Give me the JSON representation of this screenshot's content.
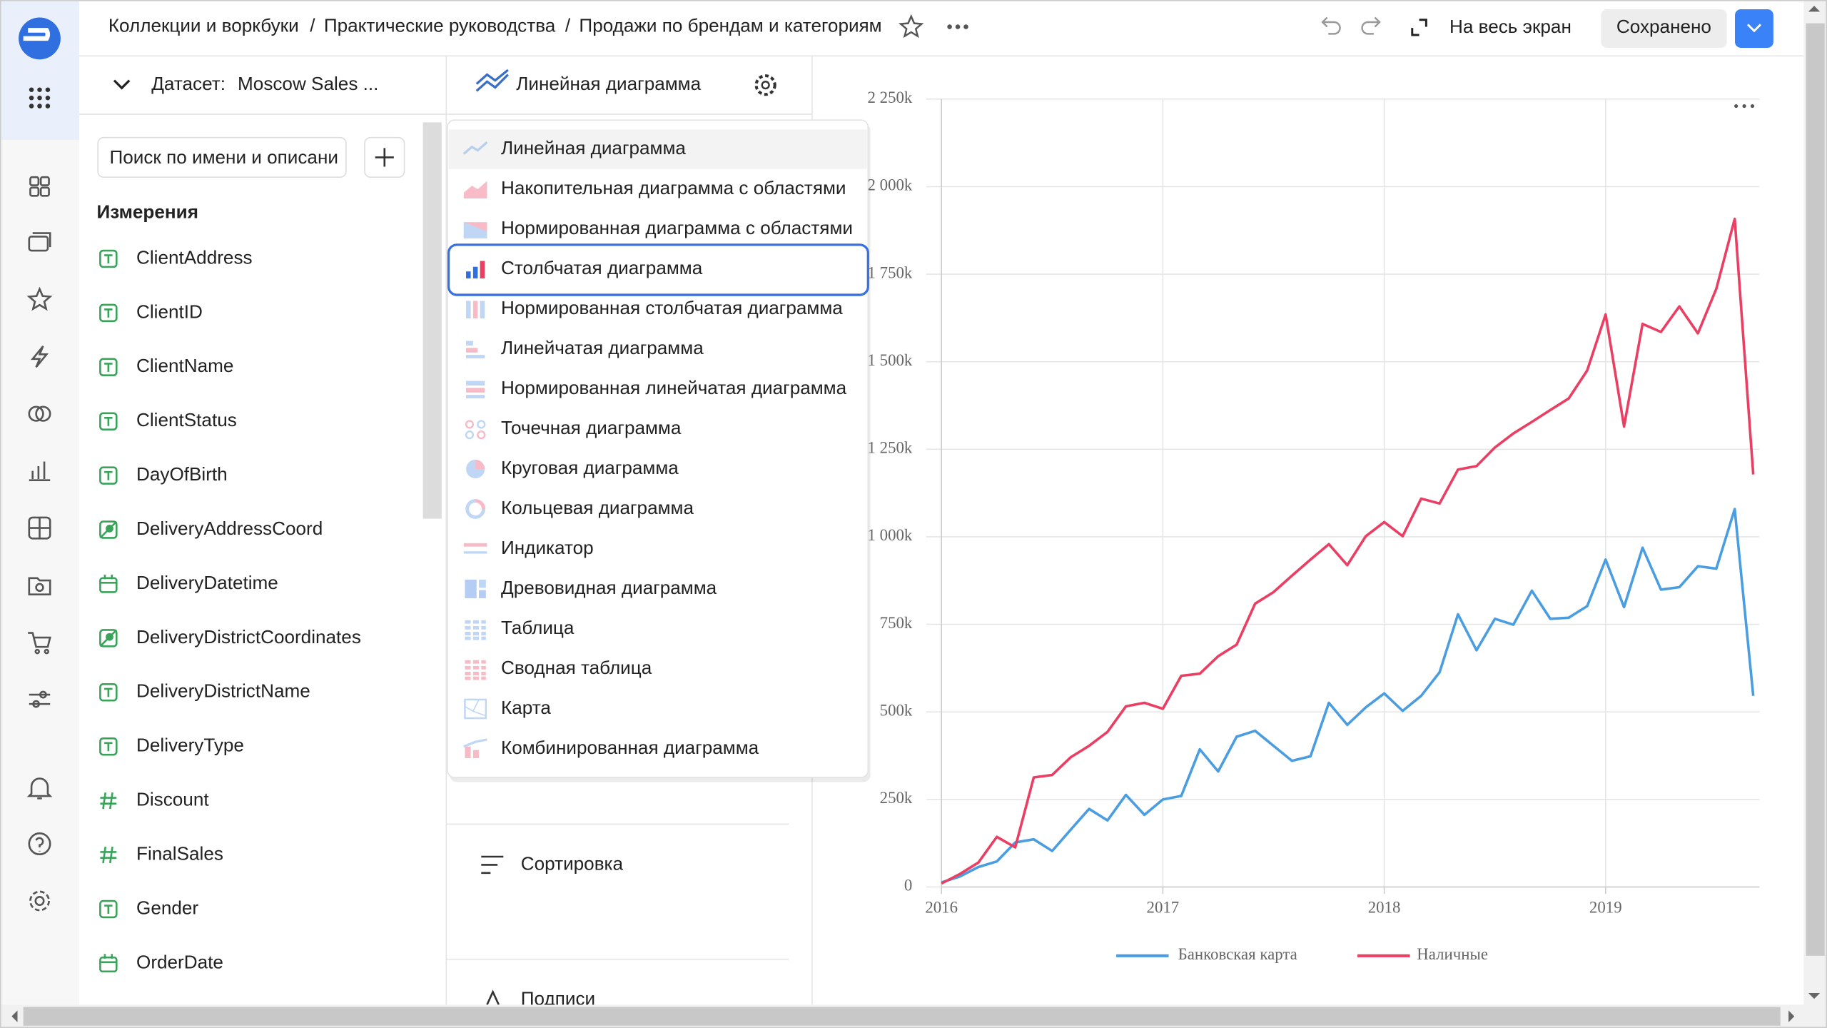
{
  "header": {
    "breadcrumbs": [
      "Коллекции и воркбуки",
      "Практические руководства"
    ],
    "separator": "/",
    "title": "Продажи по брендам и категориям",
    "fullscreen": "На весь экран",
    "save": "Сохранено"
  },
  "dataset": {
    "label": "Датасет:",
    "name": "Moscow Sales ...",
    "search_placeholder": "Поиск по имени и описани",
    "dimensions_title": "Измерения",
    "fields": [
      "ClientAddress",
      "ClientID",
      "ClientName",
      "ClientStatus",
      "DayOfBirth",
      "DeliveryAddressCoord",
      "DeliveryDatetime",
      "DeliveryDistrictCoordinates",
      "DeliveryDistrictName",
      "DeliveryType",
      "Discount",
      "FinalSales",
      "Gender",
      "OrderDate"
    ]
  },
  "visualization": {
    "current": "Линейная диаграмма",
    "chart_types": [
      "Линейная диаграмма",
      "Накопительная диаграмма с областями",
      "Нормированная диаграмма с областями",
      "Столбчатая диаграмма",
      "Нормированная столбчатая диаграмма",
      "Линейчатая диаграмма",
      "Нормированная линейчатая диаграмма",
      "Точечная диаграмма",
      "Круговая диаграмма",
      "Кольцевая диаграмма",
      "Индикатор",
      "Древовидная диаграмма",
      "Таблица",
      "Сводная таблица",
      "Карта",
      "Комбинированная диаграмма"
    ],
    "selected": 3,
    "sorting": "Сортировка",
    "labels": "Подписи"
  },
  "chart_data": {
    "type": "line",
    "categories": [
      "2016",
      null,
      null,
      null,
      null,
      null,
      null,
      null,
      null,
      null,
      null,
      null,
      "2017",
      null,
      null,
      null,
      null,
      null,
      null,
      null,
      null,
      null,
      null,
      null,
      "2018",
      null,
      null,
      null,
      null,
      null,
      null,
      null,
      null,
      null,
      null,
      null,
      "2019",
      null,
      null,
      null,
      null,
      null,
      null,
      null,
      null
    ],
    "ylim": [
      0,
      2250000
    ],
    "yticks": [
      0,
      {
        "value": 250000,
        "label": "250k"
      },
      {
        "value": 500000,
        "label": "500k"
      },
      {
        "value": 750000,
        "label": "750k"
      },
      {
        "value": 1000000,
        "label": "1 000k"
      },
      {
        "value": 1250000,
        "label": "1 250k"
      },
      {
        "value": 1500000,
        "label": "1 500k"
      },
      {
        "value": 1750000,
        "label": "1 750k"
      },
      {
        "value": 2000000,
        "label": "2 000k"
      },
      {
        "value": 2250000,
        "label": "2 250k"
      }
    ],
    "grid": true,
    "legend": "bottom",
    "series": [
      {
        "name": "Банковская карта",
        "color": "#4a9de0",
        "values": [
          13000,
          30000,
          57000,
          73000,
          127000,
          136000,
          103000,
          163000,
          223000,
          190000,
          263000,
          206000,
          250000,
          260000,
          393000,
          330000,
          429000,
          446000,
          403000,
          360000,
          373000,
          526000,
          463000,
          513000,
          553000,
          503000,
          546000,
          613000,
          779000,
          676000,
          766000,
          749000,
          846000,
          766000,
          769000,
          802000,
          935000,
          799000,
          969000,
          849000,
          856000,
          916000,
          909000,
          1079000,
          546000
        ]
      },
      {
        "name": "Наличные",
        "color": "#eb3e63",
        "values": [
          10000,
          37000,
          70000,
          143000,
          113000,
          313000,
          320000,
          370000,
          403000,
          443000,
          516000,
          526000,
          509000,
          603000,
          609000,
          659000,
          692000,
          809000,
          842000,
          889000,
          935000,
          979000,
          919000,
          1002000,
          1042000,
          1002000,
          1109000,
          1095000,
          1192000,
          1202000,
          1255000,
          1295000,
          1328000,
          1362000,
          1395000,
          1475000,
          1635000,
          1315000,
          1608000,
          1585000,
          1658000,
          1581000,
          1708000,
          1908000,
          1178000
        ]
      }
    ]
  }
}
